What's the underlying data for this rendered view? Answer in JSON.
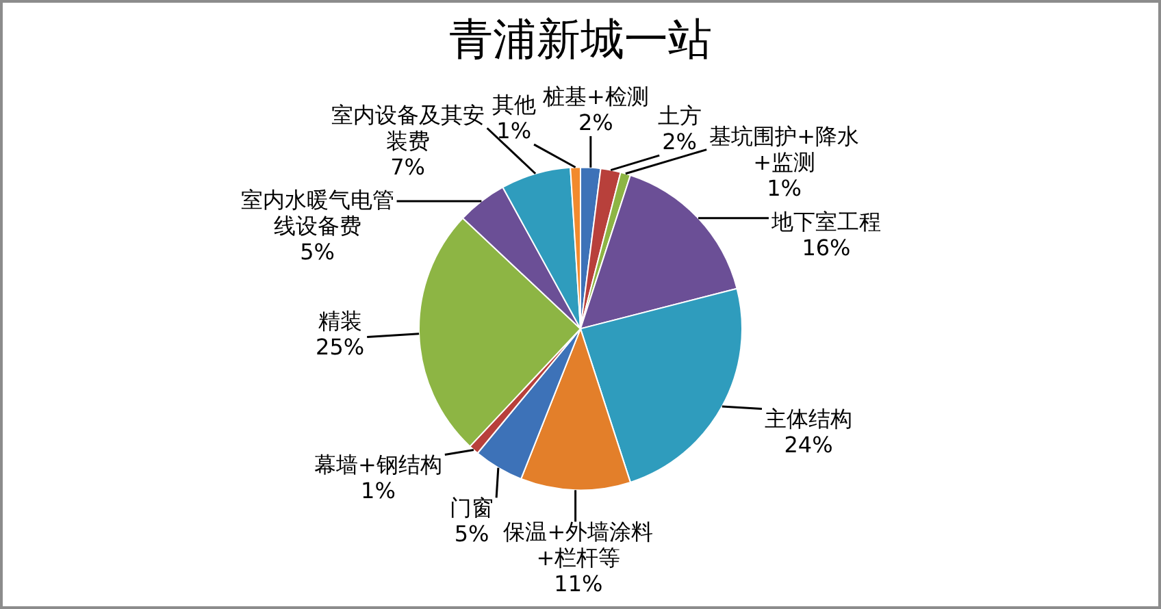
{
  "chart_data": {
    "type": "pie",
    "title": "青浦新城一站",
    "categories": [
      "桩基+检测",
      "土方",
      "基坑围护+降水+监测",
      "地下室工程",
      "主体结构",
      "保温+外墙涂料+栏杆等",
      "门窗",
      "幕墙+钢结构",
      "精装",
      "室内水暖气电管线设备费",
      "室内设备及其安装费",
      "其他"
    ],
    "values": [
      2,
      2,
      1,
      16,
      24,
      11,
      5,
      1,
      25,
      5,
      7,
      1
    ],
    "value_labels": [
      "2%",
      "2%",
      "1%",
      "16%",
      "24%",
      "11%",
      "5%",
      "1%",
      "25%",
      "5%",
      "7%",
      "1%"
    ],
    "colors": [
      "#3d72b8",
      "#b8403b",
      "#8db544",
      "#6b4f96",
      "#2f9cbd",
      "#e37f2a",
      "#3d72b8",
      "#b8403b",
      "#8db544",
      "#6b4f96",
      "#2f9cbd",
      "#f28a2e"
    ]
  }
}
